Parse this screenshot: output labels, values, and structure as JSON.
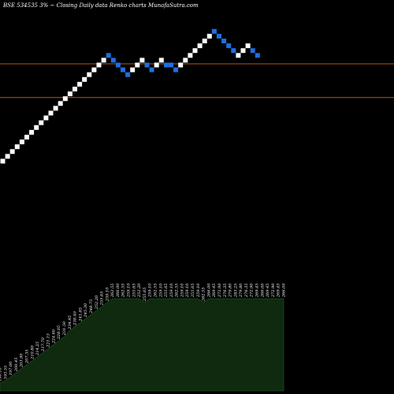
{
  "header": {
    "title": "BSE 534535 3% ~  Closing Daily data  Renko  charts MunafaSutra.com"
  },
  "colors": {
    "background": "#000000",
    "up_brick": "#ffffff",
    "down_brick": "#1f6fe0",
    "ref_line": "#b8560f",
    "volume_fill": "#0f2a0f",
    "volume_stroke": "#1e4a1e"
  },
  "chart_data": {
    "type": "renko",
    "bricks": [
      {
        "level": 0,
        "dir": "up"
      },
      {
        "level": 1,
        "dir": "up"
      },
      {
        "level": 2,
        "dir": "up"
      },
      {
        "level": 3,
        "dir": "up"
      },
      {
        "level": 4,
        "dir": "up"
      },
      {
        "level": 5,
        "dir": "up"
      },
      {
        "level": 6,
        "dir": "up"
      },
      {
        "level": 7,
        "dir": "up"
      },
      {
        "level": 8,
        "dir": "up"
      },
      {
        "level": 9,
        "dir": "up"
      },
      {
        "level": 10,
        "dir": "up"
      },
      {
        "level": 11,
        "dir": "up"
      },
      {
        "level": 12,
        "dir": "up"
      },
      {
        "level": 13,
        "dir": "up"
      },
      {
        "level": 14,
        "dir": "up"
      },
      {
        "level": 15,
        "dir": "up"
      },
      {
        "level": 16,
        "dir": "up"
      },
      {
        "level": 17,
        "dir": "up"
      },
      {
        "level": 18,
        "dir": "up"
      },
      {
        "level": 19,
        "dir": "up"
      },
      {
        "level": 20,
        "dir": "up"
      },
      {
        "level": 21,
        "dir": "up"
      },
      {
        "level": 22,
        "dir": "down"
      },
      {
        "level": 21,
        "dir": "down"
      },
      {
        "level": 20,
        "dir": "down"
      },
      {
        "level": 19,
        "dir": "down"
      },
      {
        "level": 18,
        "dir": "down"
      },
      {
        "level": 19,
        "dir": "up"
      },
      {
        "level": 20,
        "dir": "up"
      },
      {
        "level": 21,
        "dir": "up"
      },
      {
        "level": 20,
        "dir": "down"
      },
      {
        "level": 19,
        "dir": "down"
      },
      {
        "level": 20,
        "dir": "up"
      },
      {
        "level": 21,
        "dir": "up"
      },
      {
        "level": 20,
        "dir": "down"
      },
      {
        "level": 20,
        "dir": "down"
      },
      {
        "level": 19,
        "dir": "down"
      },
      {
        "level": 20,
        "dir": "up"
      },
      {
        "level": 21,
        "dir": "up"
      },
      {
        "level": 22,
        "dir": "up"
      },
      {
        "level": 23,
        "dir": "up"
      },
      {
        "level": 24,
        "dir": "up"
      },
      {
        "level": 25,
        "dir": "up"
      },
      {
        "level": 26,
        "dir": "up"
      },
      {
        "level": 27,
        "dir": "down"
      },
      {
        "level": 26,
        "dir": "down"
      },
      {
        "level": 25,
        "dir": "down"
      },
      {
        "level": 24,
        "dir": "down"
      },
      {
        "level": 23,
        "dir": "down"
      },
      {
        "level": 22,
        "dir": "up"
      },
      {
        "level": 23,
        "dir": "up"
      },
      {
        "level": 24,
        "dir": "up"
      },
      {
        "level": 23,
        "dir": "down"
      },
      {
        "level": 22,
        "dir": "down"
      }
    ],
    "reference_levels": [
      13,
      20
    ],
    "volume_labels": [
      "190.10",
      "193.55",
      "197.00",
      "200.45",
      "203.90",
      "207.35",
      "210.80",
      "214.25",
      "217.70",
      "221.15",
      "224.60",
      "228.05",
      "231.50",
      "234.95",
      "238.40",
      "241.85",
      "245.30",
      "248.75",
      "252.20",
      "255.65",
      "259.10",
      "262.55",
      "266.00",
      "262.55",
      "259.10",
      "255.65",
      "252.20",
      "255.65",
      "259.10",
      "262.55",
      "259.10",
      "255.65",
      "259.10",
      "262.55",
      "259.10",
      "259.10",
      "255.65",
      "259.10",
      "262.55",
      "266.00",
      "269.45",
      "272.90",
      "276.35",
      "279.80",
      "283.25",
      "279.80",
      "276.35",
      "272.90",
      "269.45",
      "266.00",
      "269.45",
      "272.90",
      "269.45",
      "266.00"
    ],
    "volume_values": [
      4,
      5,
      7,
      9,
      11,
      13,
      15,
      17,
      19,
      21,
      23,
      25,
      27,
      30,
      32,
      34,
      36,
      38,
      40,
      42,
      44,
      46,
      46,
      46,
      46,
      46,
      46,
      44,
      46,
      46,
      46,
      46,
      46,
      46,
      46,
      46,
      46,
      46,
      44,
      46,
      46,
      46,
      46,
      46,
      46,
      46,
      46,
      46,
      46,
      46,
      46,
      46,
      46,
      46
    ],
    "volume_max": 46
  }
}
